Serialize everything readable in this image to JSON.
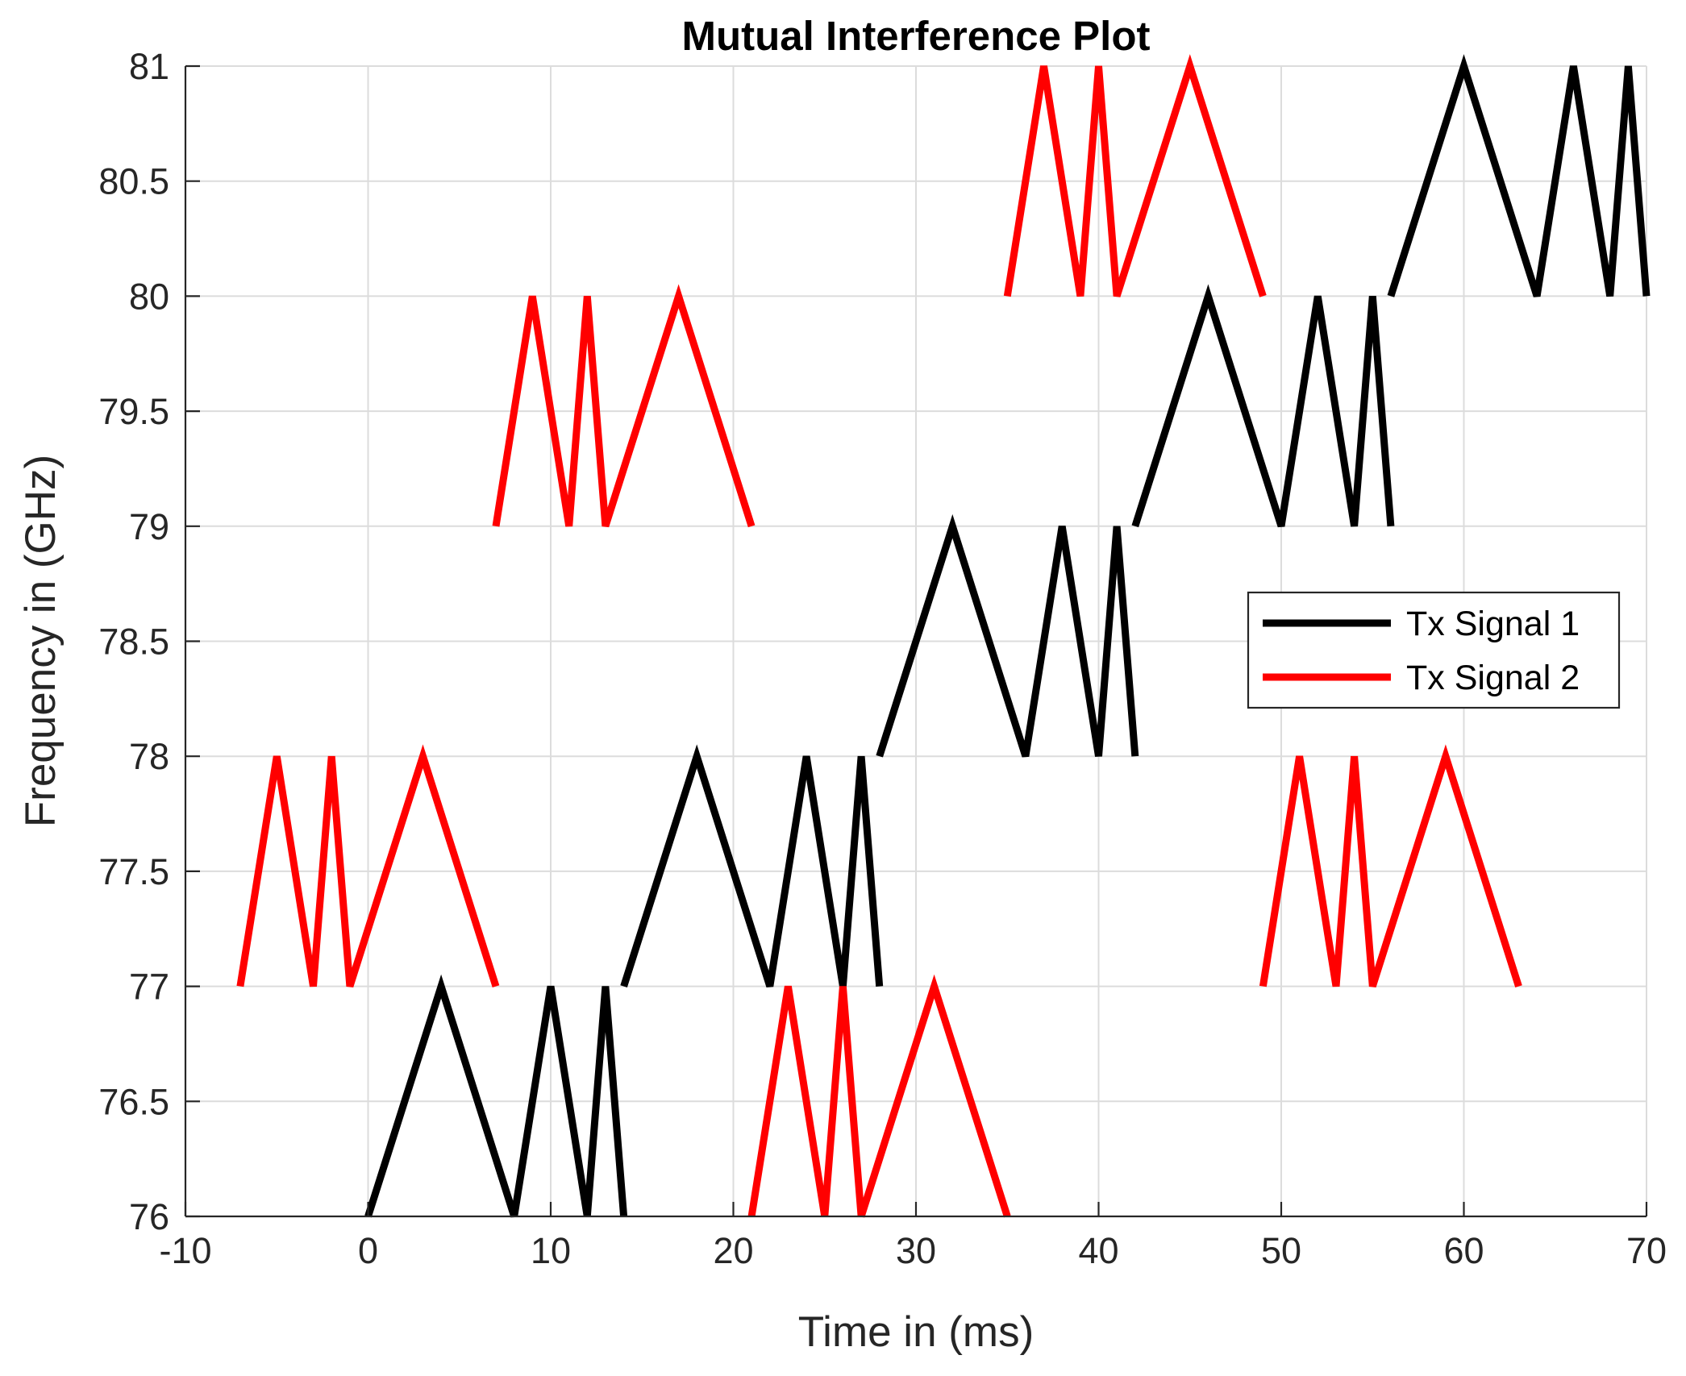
{
  "chart_data": {
    "type": "line",
    "title": "Mutual Interference Plot",
    "xlabel": "Time in (ms)",
    "ylabel": "Frequency in (GHz)",
    "xlim": [
      -10,
      70
    ],
    "ylim": [
      76,
      81
    ],
    "xticks": [
      -10,
      0,
      10,
      20,
      30,
      40,
      50,
      60,
      70
    ],
    "yticks": [
      76,
      76.5,
      77,
      77.5,
      78,
      78.5,
      79,
      79.5,
      80,
      80.5,
      81
    ],
    "xtick_labels": [
      "-10",
      "0",
      "10",
      "20",
      "30",
      "40",
      "50",
      "60",
      "70"
    ],
    "ytick_labels": [
      "76",
      "76.5",
      "77",
      "77.5",
      "78",
      "78.5",
      "79",
      "79.5",
      "80",
      "80.5",
      "81"
    ],
    "grid": true,
    "legend_position": "right-middle",
    "series": [
      {
        "name": "Tx Signal 1",
        "color": "#000000",
        "segments": [
          [
            [
              0,
              76
            ],
            [
              4,
              77
            ],
            [
              8,
              76
            ],
            [
              10,
              77
            ],
            [
              12,
              76
            ],
            [
              13,
              77
            ],
            [
              14,
              76
            ]
          ],
          [
            [
              14,
              77
            ],
            [
              18,
              78
            ],
            [
              22,
              77
            ],
            [
              24,
              78
            ],
            [
              26,
              77
            ],
            [
              27,
              78
            ],
            [
              28,
              77
            ]
          ],
          [
            [
              28,
              78
            ],
            [
              32,
              79
            ],
            [
              36,
              78
            ],
            [
              38,
              79
            ],
            [
              40,
              78
            ],
            [
              41,
              79
            ],
            [
              42,
              78
            ]
          ],
          [
            [
              42,
              79
            ],
            [
              46,
              80
            ],
            [
              50,
              79
            ],
            [
              52,
              80
            ],
            [
              54,
              79
            ],
            [
              55,
              80
            ],
            [
              56,
              79
            ]
          ],
          [
            [
              56,
              80
            ],
            [
              60,
              81
            ],
            [
              64,
              80
            ],
            [
              66,
              81
            ],
            [
              68,
              80
            ],
            [
              69,
              81
            ],
            [
              70,
              80
            ]
          ]
        ]
      },
      {
        "name": "Tx Signal 2",
        "color": "#ff0000",
        "segments": [
          [
            [
              -7,
              77
            ],
            [
              -5,
              78
            ],
            [
              -3,
              77
            ],
            [
              -2,
              78
            ],
            [
              -1,
              77
            ],
            [
              3,
              78
            ],
            [
              7,
              77
            ]
          ],
          [
            [
              7,
              79
            ],
            [
              9,
              80
            ],
            [
              11,
              79
            ],
            [
              12,
              80
            ],
            [
              13,
              79
            ],
            [
              17,
              80
            ],
            [
              21,
              79
            ]
          ],
          [
            [
              21,
              76
            ],
            [
              23,
              77
            ],
            [
              25,
              76
            ],
            [
              26,
              77
            ],
            [
              27,
              76
            ],
            [
              31,
              77
            ],
            [
              35,
              76
            ]
          ],
          [
            [
              35,
              80
            ],
            [
              37,
              81
            ],
            [
              39,
              80
            ],
            [
              40,
              81
            ],
            [
              41,
              80
            ],
            [
              45,
              81
            ],
            [
              49,
              80
            ]
          ],
          [
            [
              49,
              77
            ],
            [
              51,
              78
            ],
            [
              53,
              77
            ],
            [
              54,
              78
            ],
            [
              55,
              77
            ],
            [
              59,
              78
            ],
            [
              63,
              77
            ]
          ]
        ]
      }
    ]
  }
}
